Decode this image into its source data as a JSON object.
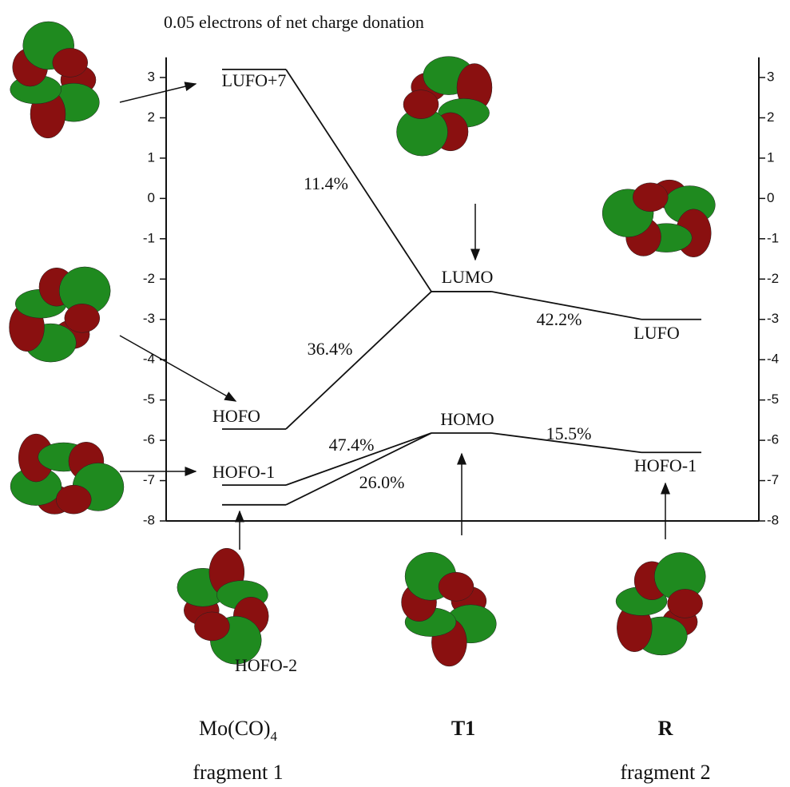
{
  "title": "0.05 electrons of net charge donation",
  "axis": {
    "ylim": [
      -8,
      3.5
    ],
    "yticks": [
      3,
      2,
      1,
      0,
      -1,
      -2,
      -3,
      -4,
      -5,
      -6,
      -7,
      -8
    ]
  },
  "levels": [
    {
      "label": "LUFO+7",
      "energy": 3.2,
      "column": 0
    },
    {
      "label": "HOFO",
      "energy": -5.72,
      "column": 0
    },
    {
      "label": "HOFO-1",
      "energy": -7.11,
      "column": 0
    },
    {
      "label": "HOFO-2",
      "energy": -7.6,
      "column": 0
    },
    {
      "label": "LUMO",
      "energy": -2.31,
      "column": 1
    },
    {
      "label": "HOMO",
      "energy": -5.82,
      "column": 1
    },
    {
      "label": "LUFO",
      "energy": -3.0,
      "column": 2
    },
    {
      "label": "HOFO-1",
      "energy": -6.3,
      "column": 2
    }
  ],
  "contributions": [
    "11.4%",
    "36.4%",
    "47.4%",
    "26.0%",
    "42.2%",
    "15.5%"
  ],
  "fragments": [
    {
      "name": "Mo(CO)",
      "subscript": "4",
      "caption": "fragment 1"
    },
    {
      "name": "T1"
    },
    {
      "name": "R",
      "caption": "fragment 2"
    }
  ]
}
